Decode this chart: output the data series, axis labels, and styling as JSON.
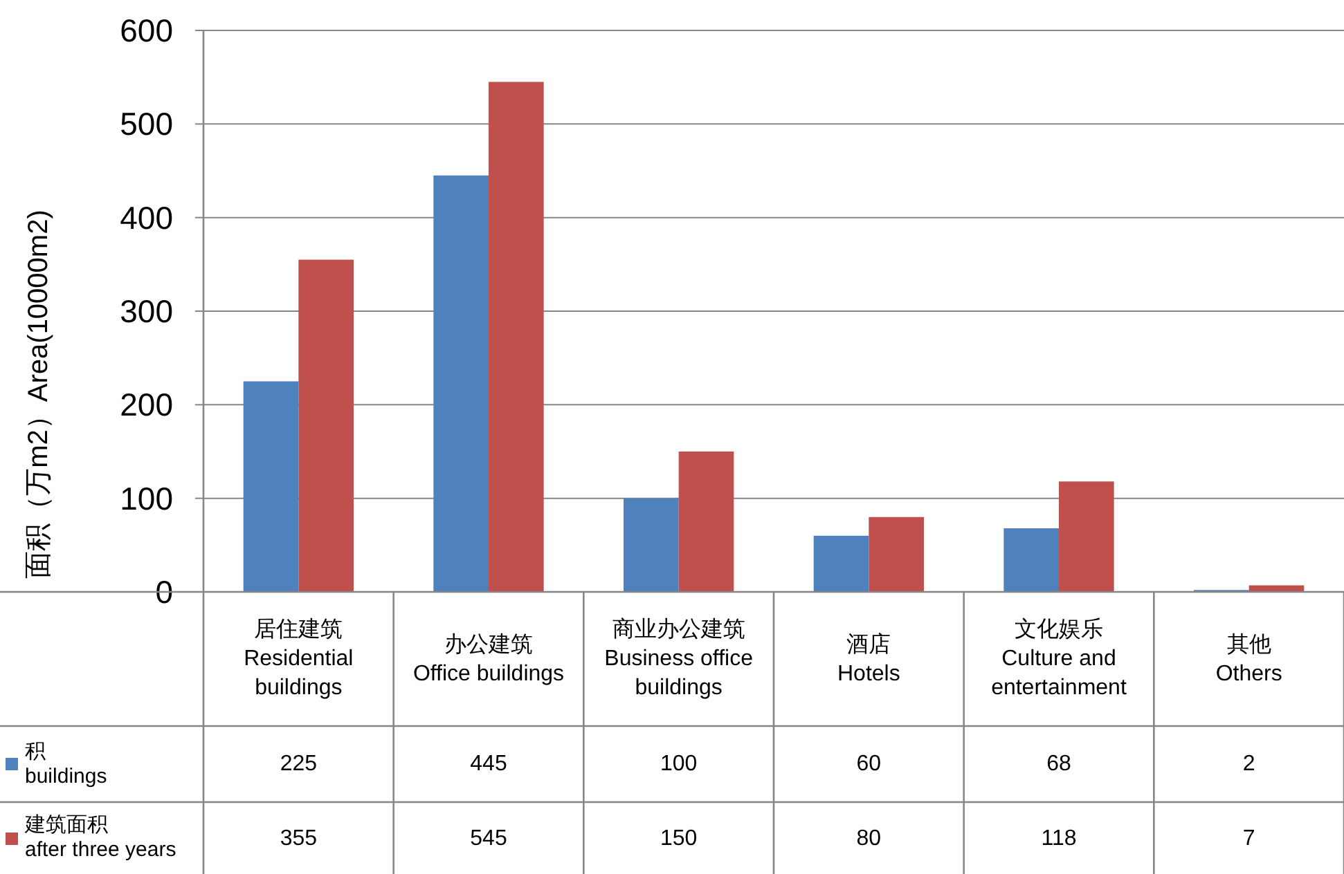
{
  "chart_data": {
    "type": "bar",
    "ylabel": "面积（万m2）Area(10000m2)",
    "categories": [
      "居住建筑\nResidential buildings",
      "办公建筑\nOffice buildings",
      "商业办公建筑\nBusiness office buildings",
      "酒店\nHotels",
      "文化娱乐\nCulture and entertainment",
      "其他\nOthers"
    ],
    "series": [
      {
        "name": "积\nbuildings",
        "color": "#4f81bd",
        "values": [
          225,
          445,
          100,
          60,
          68,
          2
        ]
      },
      {
        "name": "建筑面积\nafter three years",
        "color": "#c0504d",
        "values": [
          355,
          545,
          150,
          80,
          118,
          7
        ]
      }
    ],
    "ylim": [
      0,
      600
    ],
    "yticks": [
      0,
      100,
      200,
      300,
      400,
      500,
      600
    ],
    "grid": "y",
    "data_labels": true,
    "legend": "left"
  }
}
